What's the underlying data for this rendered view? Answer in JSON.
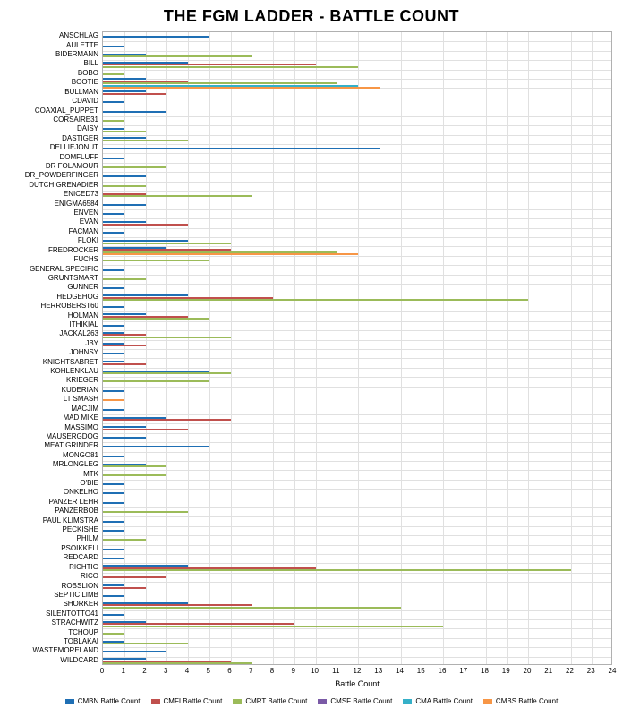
{
  "title": "THE FGM LADDER - BATTLE COUNT",
  "x_axis_label": "Battle Count",
  "xlim": [
    0,
    24
  ],
  "xtick_step": 1,
  "grid_color_major": "#b0b0b0",
  "grid_color_minor": "#e0e0e0",
  "background_color": "#ffffff",
  "series": [
    {
      "name": "CMBN Battle Count",
      "color": "#1f6fb4"
    },
    {
      "name": "CMFI Battle Count",
      "color": "#c0504d"
    },
    {
      "name": "CMRT Battle Count",
      "color": "#9bbb59"
    },
    {
      "name": "CMSF Battle Count",
      "color": "#7a5aa6"
    },
    {
      "name": "CMA Battle Count",
      "color": "#35b0c8"
    },
    {
      "name": "CMBS Battle Count",
      "color": "#f79646"
    }
  ],
  "players": [
    {
      "name": "ANSCHLAG",
      "v": [
        5,
        0,
        0,
        0,
        0,
        0
      ]
    },
    {
      "name": "AULETTE",
      "v": [
        1,
        0,
        0,
        0,
        0,
        0
      ]
    },
    {
      "name": "BIDERMANN",
      "v": [
        2,
        0,
        7,
        0,
        0,
        0
      ]
    },
    {
      "name": "BILL",
      "v": [
        4,
        10,
        12,
        0,
        0,
        0
      ]
    },
    {
      "name": "BOBO",
      "v": [
        0,
        0,
        1,
        0,
        0,
        0
      ]
    },
    {
      "name": "BOOTIE",
      "v": [
        2,
        4,
        11,
        0,
        12,
        13
      ]
    },
    {
      "name": "BULLMAN",
      "v": [
        2,
        3,
        0,
        0,
        0,
        0
      ]
    },
    {
      "name": "CDAVID",
      "v": [
        1,
        0,
        0,
        0,
        0,
        0
      ]
    },
    {
      "name": "COAXIAL_PUPPET",
      "v": [
        3,
        0,
        0,
        0,
        0,
        0
      ]
    },
    {
      "name": "CORSAIRE31",
      "v": [
        0,
        0,
        1,
        0,
        0,
        0
      ]
    },
    {
      "name": "DAISY",
      "v": [
        1,
        0,
        2,
        0,
        0,
        0
      ]
    },
    {
      "name": "DASTIGER",
      "v": [
        2,
        0,
        4,
        0,
        0,
        0
      ]
    },
    {
      "name": "DELLIEJONUT",
      "v": [
        13,
        0,
        0,
        0,
        0,
        0
      ]
    },
    {
      "name": "DOMFLUFF",
      "v": [
        1,
        0,
        0,
        0,
        0,
        0
      ]
    },
    {
      "name": "DR FOLAMOUR",
      "v": [
        0,
        0,
        3,
        0,
        0,
        0
      ]
    },
    {
      "name": "DR_POWDERFINGER",
      "v": [
        2,
        0,
        0,
        0,
        0,
        0
      ]
    },
    {
      "name": "DUTCH GRENADIER",
      "v": [
        0,
        0,
        2,
        0,
        0,
        0
      ]
    },
    {
      "name": "ENICED73",
      "v": [
        0,
        2,
        7,
        0,
        0,
        0
      ]
    },
    {
      "name": "ENIGMA6584",
      "v": [
        2,
        0,
        0,
        0,
        0,
        0
      ]
    },
    {
      "name": "ENVEN",
      "v": [
        1,
        0,
        0,
        0,
        0,
        0
      ]
    },
    {
      "name": "EVAN",
      "v": [
        2,
        4,
        0,
        0,
        0,
        0
      ]
    },
    {
      "name": "FACMAN",
      "v": [
        1,
        0,
        0,
        0,
        0,
        0
      ]
    },
    {
      "name": "FLOKI",
      "v": [
        4,
        0,
        6,
        0,
        0,
        0
      ]
    },
    {
      "name": "FREDROCKER",
      "v": [
        3,
        6,
        11,
        0,
        0,
        12
      ]
    },
    {
      "name": "FUCHS",
      "v": [
        0,
        0,
        5,
        0,
        0,
        0
      ]
    },
    {
      "name": "GENERAL SPECIFIC",
      "v": [
        1,
        0,
        0,
        0,
        0,
        0
      ]
    },
    {
      "name": "GRUNTSMART",
      "v": [
        0,
        0,
        2,
        0,
        0,
        0
      ]
    },
    {
      "name": "GUNNER",
      "v": [
        1,
        0,
        0,
        0,
        0,
        0
      ]
    },
    {
      "name": "HEDGEHOG",
      "v": [
        4,
        8,
        20,
        0,
        0,
        0
      ]
    },
    {
      "name": "HERROBERST60",
      "v": [
        1,
        0,
        0,
        0,
        0,
        0
      ]
    },
    {
      "name": "HOLMAN",
      "v": [
        2,
        4,
        5,
        0,
        0,
        0
      ]
    },
    {
      "name": "ITHIKIAL",
      "v": [
        1,
        0,
        0,
        0,
        0,
        0
      ]
    },
    {
      "name": "JACKAL263",
      "v": [
        1,
        2,
        6,
        0,
        0,
        0
      ]
    },
    {
      "name": "JBY",
      "v": [
        1,
        2,
        0,
        0,
        0,
        0
      ]
    },
    {
      "name": "JOHNSY",
      "v": [
        1,
        0,
        0,
        0,
        0,
        0
      ]
    },
    {
      "name": "KNIGHTSABRET",
      "v": [
        1,
        2,
        0,
        0,
        0,
        0
      ]
    },
    {
      "name": "KOHLENKLAU",
      "v": [
        5,
        0,
        6,
        0,
        0,
        0
      ]
    },
    {
      "name": "KRIEGER",
      "v": [
        0,
        0,
        5,
        0,
        0,
        0
      ]
    },
    {
      "name": "KUDERIAN",
      "v": [
        1,
        0,
        0,
        0,
        0,
        0
      ]
    },
    {
      "name": "LT SMASH",
      "v": [
        0,
        0,
        0,
        0,
        0,
        1
      ]
    },
    {
      "name": "MACJIM",
      "v": [
        1,
        0,
        0,
        0,
        0,
        0
      ]
    },
    {
      "name": "MAD MIKE",
      "v": [
        3,
        6,
        0,
        0,
        0,
        0
      ]
    },
    {
      "name": "MASSIMO",
      "v": [
        2,
        4,
        0,
        0,
        0,
        0
      ]
    },
    {
      "name": "MAUSERGDOG",
      "v": [
        2,
        0,
        0,
        0,
        0,
        0
      ]
    },
    {
      "name": "MEAT GRINDER",
      "v": [
        5,
        0,
        0,
        0,
        0,
        0
      ]
    },
    {
      "name": "MONGO81",
      "v": [
        1,
        0,
        0,
        0,
        0,
        0
      ]
    },
    {
      "name": "MRLONGLEG",
      "v": [
        2,
        0,
        3,
        0,
        0,
        0
      ]
    },
    {
      "name": "MTK",
      "v": [
        0,
        0,
        3,
        0,
        0,
        0
      ]
    },
    {
      "name": "O'BIE",
      "v": [
        1,
        0,
        0,
        0,
        0,
        0
      ]
    },
    {
      "name": "ONKELHO",
      "v": [
        1,
        0,
        0,
        0,
        0,
        0
      ]
    },
    {
      "name": "PANZER LEHR",
      "v": [
        1,
        0,
        0,
        0,
        0,
        0
      ]
    },
    {
      "name": "PANZERBOB",
      "v": [
        0,
        0,
        4,
        0,
        0,
        0
      ]
    },
    {
      "name": "PAUL KLIMSTRA",
      "v": [
        1,
        0,
        0,
        0,
        0,
        0
      ]
    },
    {
      "name": "PECKISHE",
      "v": [
        1,
        0,
        0,
        0,
        0,
        0
      ]
    },
    {
      "name": "PHILM",
      "v": [
        0,
        0,
        2,
        0,
        0,
        0
      ]
    },
    {
      "name": "PSOIKKELI",
      "v": [
        1,
        0,
        0,
        0,
        0,
        0
      ]
    },
    {
      "name": "REDCARD",
      "v": [
        1,
        0,
        0,
        0,
        0,
        0
      ]
    },
    {
      "name": "RICHTIG",
      "v": [
        4,
        10,
        22,
        0,
        0,
        0
      ]
    },
    {
      "name": "RICO",
      "v": [
        0,
        3,
        0,
        0,
        0,
        0
      ]
    },
    {
      "name": "ROBSLION",
      "v": [
        1,
        2,
        0,
        0,
        0,
        0
      ]
    },
    {
      "name": "SEPTIC LIMB",
      "v": [
        1,
        0,
        0,
        0,
        0,
        0
      ]
    },
    {
      "name": "SHORKER",
      "v": [
        4,
        7,
        14,
        0,
        0,
        0
      ]
    },
    {
      "name": "SILENTOTTO41",
      "v": [
        1,
        0,
        0,
        0,
        0,
        0
      ]
    },
    {
      "name": "STRACHWITZ",
      "v": [
        2,
        9,
        16,
        0,
        0,
        0
      ]
    },
    {
      "name": "TCHOUP",
      "v": [
        0,
        0,
        1,
        0,
        0,
        0
      ]
    },
    {
      "name": "TOBLAKAI",
      "v": [
        1,
        0,
        4,
        0,
        0,
        0
      ]
    },
    {
      "name": "WASTEMORELAND",
      "v": [
        3,
        0,
        0,
        0,
        0,
        0
      ]
    },
    {
      "name": "WILDCARD",
      "v": [
        2,
        6,
        7,
        0,
        0,
        0
      ]
    }
  ]
}
